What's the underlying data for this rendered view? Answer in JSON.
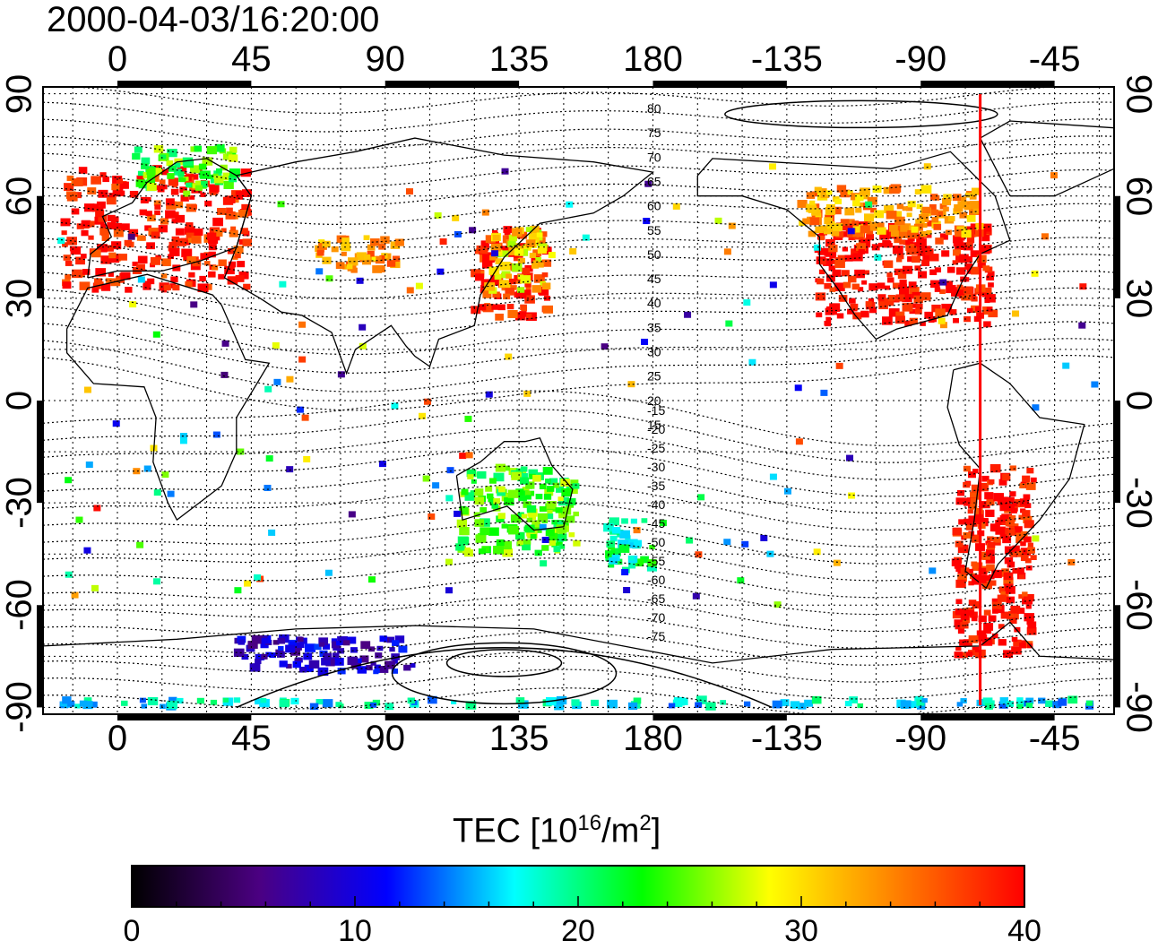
{
  "title": "2000-04-03/16:20:00",
  "map": {
    "top_ticks": [
      "0",
      "45",
      "90",
      "135",
      "180",
      "-135",
      "-90",
      "-45"
    ],
    "bottom_ticks": [
      "0",
      "45",
      "90",
      "135",
      "180",
      "-135",
      "-90",
      "-45"
    ],
    "lat_ticks": [
      "90",
      "60",
      "30",
      "0",
      "-30",
      "-60",
      "-90"
    ],
    "lon_values": [
      0,
      45,
      90,
      135,
      180,
      225,
      270,
      315
    ],
    "lat_values": [
      90,
      60,
      30,
      0,
      -30,
      -60,
      -90
    ],
    "lon_range": [
      -25,
      335
    ],
    "lat_range": [
      -92,
      92
    ],
    "terminator_longitude": 290,
    "contour_labels": [
      "80",
      "75",
      "70",
      "65",
      "60",
      "55",
      "50",
      "45",
      "40",
      "35",
      "30",
      "25",
      "20",
      "15",
      "-15",
      "-20",
      "-25",
      "-30",
      "-35",
      "-40",
      "-45",
      "-50",
      "-55",
      "-60",
      "-65",
      "-70",
      "-75"
    ],
    "colors": {
      "terminator": "#ff0000",
      "coast": "#000000",
      "grid": "#000000"
    }
  },
  "colorbar": {
    "title_prefix": "TEC  [10",
    "title_exp1": "16",
    "title_mid": "/m",
    "title_exp2": "2",
    "title_suffix": "]",
    "ticks": [
      "0",
      "10",
      "20",
      "30",
      "40"
    ],
    "min": 0,
    "max": 40,
    "stops": [
      "#000000",
      "#4b0082",
      "#0000ff",
      "#00ffff",
      "#00ff00",
      "#ffff00",
      "#ff7f00",
      "#ff0000"
    ]
  },
  "tec_regions": [
    {
      "name": "europe",
      "lon": [
        -18,
        45
      ],
      "lat": [
        32,
        68
      ],
      "tec": 39
    },
    {
      "name": "scandinavia",
      "lon": [
        5,
        40
      ],
      "lat": [
        62,
        74
      ],
      "tec": 24
    },
    {
      "name": "middle-east",
      "lon": [
        65,
        95
      ],
      "lat": [
        38,
        48
      ],
      "tec": 33
    },
    {
      "name": "japan",
      "lon": [
        120,
        145
      ],
      "lat": [
        24,
        50
      ],
      "tec": 39
    },
    {
      "name": "japan-north",
      "lon": [
        125,
        145
      ],
      "lat": [
        32,
        50
      ],
      "tec": 30
    },
    {
      "name": "usa",
      "lon": [
        235,
        295
      ],
      "lat": [
        22,
        52
      ],
      "tec": 40
    },
    {
      "name": "canada",
      "lon": [
        230,
        290
      ],
      "lat": [
        48,
        62
      ],
      "tec": 33
    },
    {
      "name": "south-america",
      "lon": [
        282,
        308
      ],
      "lat": [
        -75,
        -20
      ],
      "tec": 40
    },
    {
      "name": "australia",
      "lon": [
        115,
        155
      ],
      "lat": [
        -45,
        -20
      ],
      "tec": 24
    },
    {
      "name": "new-zealand",
      "lon": [
        165,
        180
      ],
      "lat": [
        -50,
        -35
      ],
      "tec": 20
    },
    {
      "name": "antarctic-band",
      "lon": [
        -20,
        330
      ],
      "lat": [
        -90,
        -88
      ],
      "tec": 17
    },
    {
      "name": "antarctic-stations",
      "lon": [
        40,
        100
      ],
      "lat": [
        -80,
        -70
      ],
      "tec": 9
    }
  ]
}
